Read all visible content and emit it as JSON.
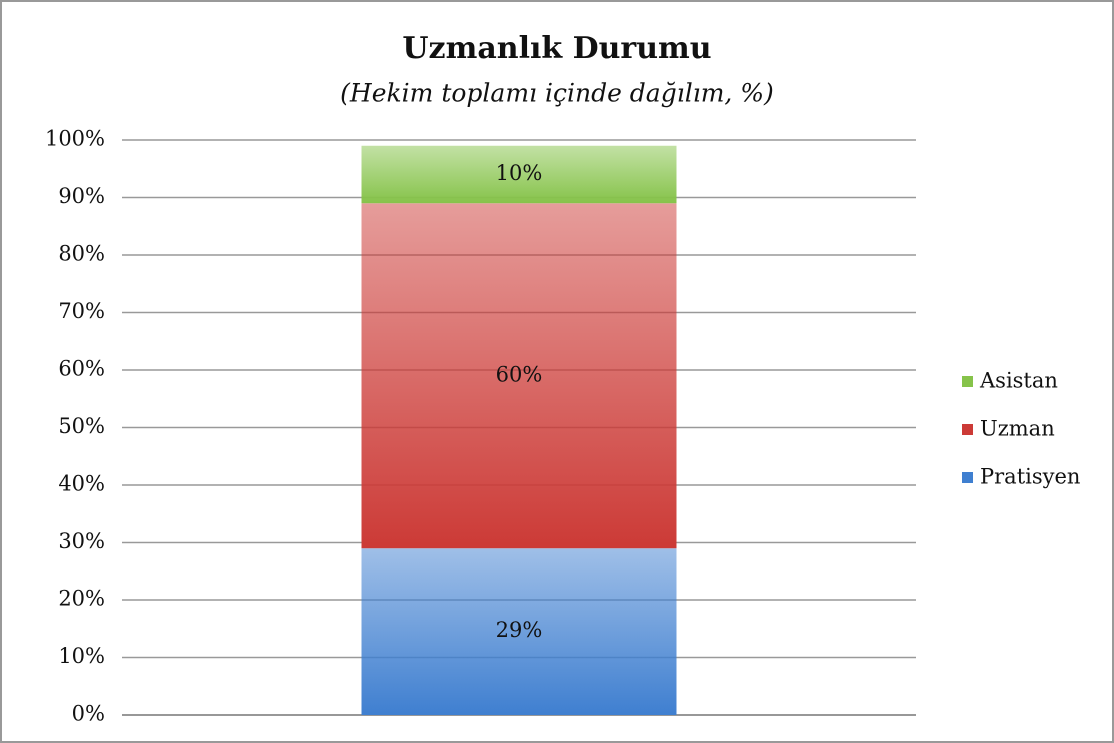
{
  "chart_data": {
    "type": "stacked_bar",
    "title": "Uzmanlık Durumu",
    "subtitle": "(Hekim toplamı içinde dağılım, %)",
    "categories": [
      null
    ],
    "series": [
      {
        "name": "Pratisyen",
        "color": "#3f7fd0",
        "values": [
          29
        ],
        "value_labels": [
          "29%"
        ]
      },
      {
        "name": "Uzman",
        "color": "#cc3a36",
        "values": [
          60
        ],
        "value_labels": [
          "60%"
        ]
      },
      {
        "name": "Asistan",
        "color": "#86c34a",
        "values": [
          10
        ],
        "value_labels": [
          "10%"
        ]
      }
    ],
    "ylim": [
      0,
      100
    ],
    "yticks": [
      {
        "value": 0,
        "label": "0%"
      },
      {
        "value": 10,
        "label": "10%"
      },
      {
        "value": 20,
        "label": "20%"
      },
      {
        "value": 30,
        "label": "30%"
      },
      {
        "value": 40,
        "label": "40%"
      },
      {
        "value": 50,
        "label": "50%"
      },
      {
        "value": 60,
        "label": "60%"
      },
      {
        "value": 70,
        "label": "70%"
      },
      {
        "value": 80,
        "label": "80%"
      },
      {
        "value": 90,
        "label": "90%"
      },
      {
        "value": 100,
        "label": "100%"
      }
    ],
    "grid": true,
    "legend": "right"
  }
}
